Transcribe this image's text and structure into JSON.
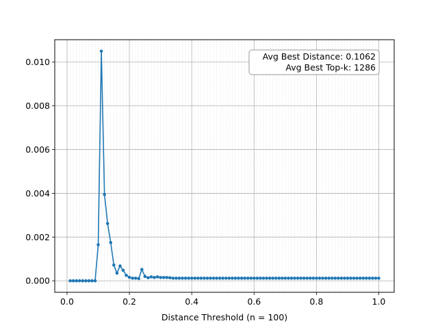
{
  "chart_data": {
    "type": "line",
    "title": "",
    "xlabel": "Distance Threshold (n = 100)",
    "ylabel": "",
    "xlim": [
      -0.0395,
      1.0495
    ],
    "ylim": [
      -0.000525,
      0.011025
    ],
    "xticks": [
      0.0,
      0.2,
      0.4,
      0.6,
      0.8,
      1.0
    ],
    "xtick_labels": [
      "0.0",
      "0.2",
      "0.4",
      "0.6",
      "0.8",
      "1.0"
    ],
    "yticks": [
      0.0,
      0.002,
      0.004,
      0.006,
      0.008,
      0.01
    ],
    "ytick_labels": [
      "0.000",
      "0.002",
      "0.004",
      "0.006",
      "0.008",
      "0.010"
    ],
    "grid": true,
    "minor_grid_step": 0.01,
    "series_color": "#1f77b4",
    "legend": "none",
    "annotation": {
      "lines": [
        "Avg Best Distance: 0.1062",
        "Avg Best Top-k: 1286"
      ],
      "position": "top-right"
    },
    "x": [
      0.01,
      0.02,
      0.03,
      0.04,
      0.05,
      0.06,
      0.07,
      0.08,
      0.09,
      0.1,
      0.11,
      0.12,
      0.13,
      0.14,
      0.15,
      0.16,
      0.17,
      0.18,
      0.19,
      0.2,
      0.21,
      0.22,
      0.23,
      0.24,
      0.25,
      0.26,
      0.27,
      0.28,
      0.29,
      0.3,
      0.31,
      0.32,
      0.33,
      0.34,
      0.35,
      0.36,
      0.37,
      0.38,
      0.39,
      0.4,
      0.41,
      0.42,
      0.43,
      0.44,
      0.45,
      0.46,
      0.47,
      0.48,
      0.49,
      0.5,
      0.51,
      0.52,
      0.53,
      0.54,
      0.55,
      0.56,
      0.57,
      0.58,
      0.59,
      0.6,
      0.61,
      0.62,
      0.63,
      0.64,
      0.65,
      0.66,
      0.67,
      0.68,
      0.69,
      0.7,
      0.71,
      0.72,
      0.73,
      0.74,
      0.75,
      0.76,
      0.77,
      0.78,
      0.79,
      0.8,
      0.81,
      0.82,
      0.83,
      0.84,
      0.85,
      0.86,
      0.87,
      0.88,
      0.89,
      0.9,
      0.91,
      0.92,
      0.93,
      0.94,
      0.95,
      0.96,
      0.97,
      0.98,
      0.99,
      1.0
    ],
    "y": [
      0.0,
      0.0,
      0.0,
      0.0,
      0.0,
      0.0,
      0.0,
      0.0,
      0.0,
      0.00165,
      0.0105,
      0.00395,
      0.00262,
      0.00175,
      0.00072,
      0.00035,
      0.00068,
      0.00048,
      0.00025,
      0.00016,
      0.00012,
      0.00012,
      0.0001,
      0.00052,
      0.0002,
      0.00014,
      0.00018,
      0.00015,
      0.00018,
      0.00015,
      0.00015,
      0.00015,
      0.00014,
      0.00012,
      0.00012,
      0.00012,
      0.00012,
      0.00012,
      0.00012,
      0.00012,
      0.00012,
      0.00012,
      0.00012,
      0.00012,
      0.00012,
      0.00012,
      0.00012,
      0.00012,
      0.00012,
      0.00012,
      0.00012,
      0.00012,
      0.00012,
      0.00012,
      0.00012,
      0.00012,
      0.00012,
      0.00012,
      0.00012,
      0.00012,
      0.00012,
      0.00012,
      0.00012,
      0.00012,
      0.00012,
      0.00012,
      0.00012,
      0.00012,
      0.00012,
      0.00012,
      0.00012,
      0.00012,
      0.00012,
      0.00012,
      0.00012,
      0.00012,
      0.00012,
      0.00012,
      0.00012,
      0.00012,
      0.00012,
      0.00012,
      0.00012,
      0.00012,
      0.00012,
      0.00012,
      0.00012,
      0.00012,
      0.00012,
      0.00012,
      0.00012,
      0.00012,
      0.00012,
      0.00012,
      0.00012,
      0.00012,
      0.00012,
      0.00012,
      0.00012,
      0.00012
    ]
  }
}
